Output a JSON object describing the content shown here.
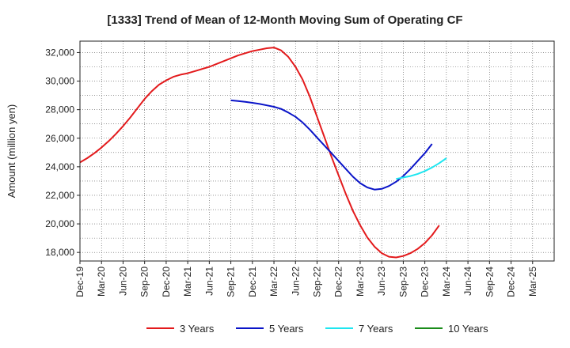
{
  "chart_data": {
    "type": "line",
    "title": "[1333]  Trend of Mean of 12-Month Moving Sum of Operating CF",
    "xlabel": "",
    "ylabel": "Amount (million yen)",
    "ylim": [
      17400,
      32800
    ],
    "y_ticks": [
      18000,
      20000,
      22000,
      24000,
      26000,
      28000,
      30000,
      32000
    ],
    "y_tick_labels": [
      "18,000",
      "20,000",
      "22,000",
      "24,000",
      "26,000",
      "28,000",
      "30,000",
      "32,000"
    ],
    "x_ticks": [
      "Dec-19",
      "Mar-20",
      "Jun-20",
      "Sep-20",
      "Dec-20",
      "Mar-21",
      "Jun-21",
      "Sep-21",
      "Dec-21",
      "Mar-22",
      "Jun-22",
      "Sep-22",
      "Dec-22",
      "Mar-23",
      "Jun-23",
      "Sep-23",
      "Dec-23",
      "Mar-24",
      "Jun-24",
      "Sep-24",
      "Dec-24",
      "Mar-25"
    ],
    "grid": true,
    "legend_position": "bottom",
    "series": [
      {
        "name": "3 Years",
        "color": "#e31a1c",
        "points": [
          [
            0,
            24300
          ],
          [
            1,
            24600
          ],
          [
            2,
            24950
          ],
          [
            3,
            25350
          ],
          [
            4,
            25800
          ],
          [
            5,
            26300
          ],
          [
            6,
            26850
          ],
          [
            7,
            27450
          ],
          [
            8,
            28100
          ],
          [
            9,
            28750
          ],
          [
            10,
            29300
          ],
          [
            11,
            29750
          ],
          [
            12,
            30050
          ],
          [
            13,
            30300
          ],
          [
            14,
            30450
          ],
          [
            15,
            30550
          ],
          [
            16,
            30700
          ],
          [
            17,
            30850
          ],
          [
            18,
            31000
          ],
          [
            19,
            31200
          ],
          [
            20,
            31400
          ],
          [
            21,
            31600
          ],
          [
            22,
            31800
          ],
          [
            23,
            31950
          ],
          [
            24,
            32100
          ],
          [
            25,
            32200
          ],
          [
            26,
            32300
          ],
          [
            27,
            32350
          ],
          [
            28,
            32150
          ],
          [
            29,
            31700
          ],
          [
            30,
            31000
          ],
          [
            31,
            30100
          ],
          [
            32,
            28900
          ],
          [
            33,
            27500
          ],
          [
            34,
            26100
          ],
          [
            35,
            24700
          ],
          [
            36,
            23400
          ],
          [
            37,
            22100
          ],
          [
            38,
            20900
          ],
          [
            39,
            19900
          ],
          [
            40,
            19050
          ],
          [
            41,
            18400
          ],
          [
            42,
            17950
          ],
          [
            43,
            17700
          ],
          [
            44,
            17650
          ],
          [
            45,
            17750
          ],
          [
            46,
            17950
          ],
          [
            47,
            18250
          ],
          [
            48,
            18650
          ],
          [
            49,
            19200
          ],
          [
            50,
            19900
          ]
        ]
      },
      {
        "name": "5 Years",
        "color": "#0a14c8",
        "points": [
          [
            21,
            28650
          ],
          [
            22,
            28600
          ],
          [
            23,
            28550
          ],
          [
            24,
            28480
          ],
          [
            25,
            28400
          ],
          [
            26,
            28300
          ],
          [
            27,
            28200
          ],
          [
            28,
            28050
          ],
          [
            29,
            27800
          ],
          [
            30,
            27500
          ],
          [
            31,
            27100
          ],
          [
            32,
            26600
          ],
          [
            33,
            26050
          ],
          [
            34,
            25500
          ],
          [
            35,
            24950
          ],
          [
            36,
            24400
          ],
          [
            37,
            23850
          ],
          [
            38,
            23300
          ],
          [
            39,
            22850
          ],
          [
            40,
            22550
          ],
          [
            41,
            22400
          ],
          [
            42,
            22450
          ],
          [
            43,
            22650
          ],
          [
            44,
            22950
          ],
          [
            45,
            23350
          ],
          [
            46,
            23850
          ],
          [
            47,
            24400
          ],
          [
            48,
            24950
          ],
          [
            49,
            25600
          ]
        ]
      },
      {
        "name": "7 Years",
        "color": "#1ee6f0",
        "points": [
          [
            44,
            23150
          ],
          [
            45,
            23250
          ],
          [
            46,
            23350
          ],
          [
            47,
            23500
          ],
          [
            48,
            23700
          ],
          [
            49,
            23950
          ],
          [
            50,
            24250
          ],
          [
            51,
            24600
          ]
        ]
      },
      {
        "name": "10 Years",
        "color": "#1a8c1a",
        "points": []
      }
    ]
  }
}
